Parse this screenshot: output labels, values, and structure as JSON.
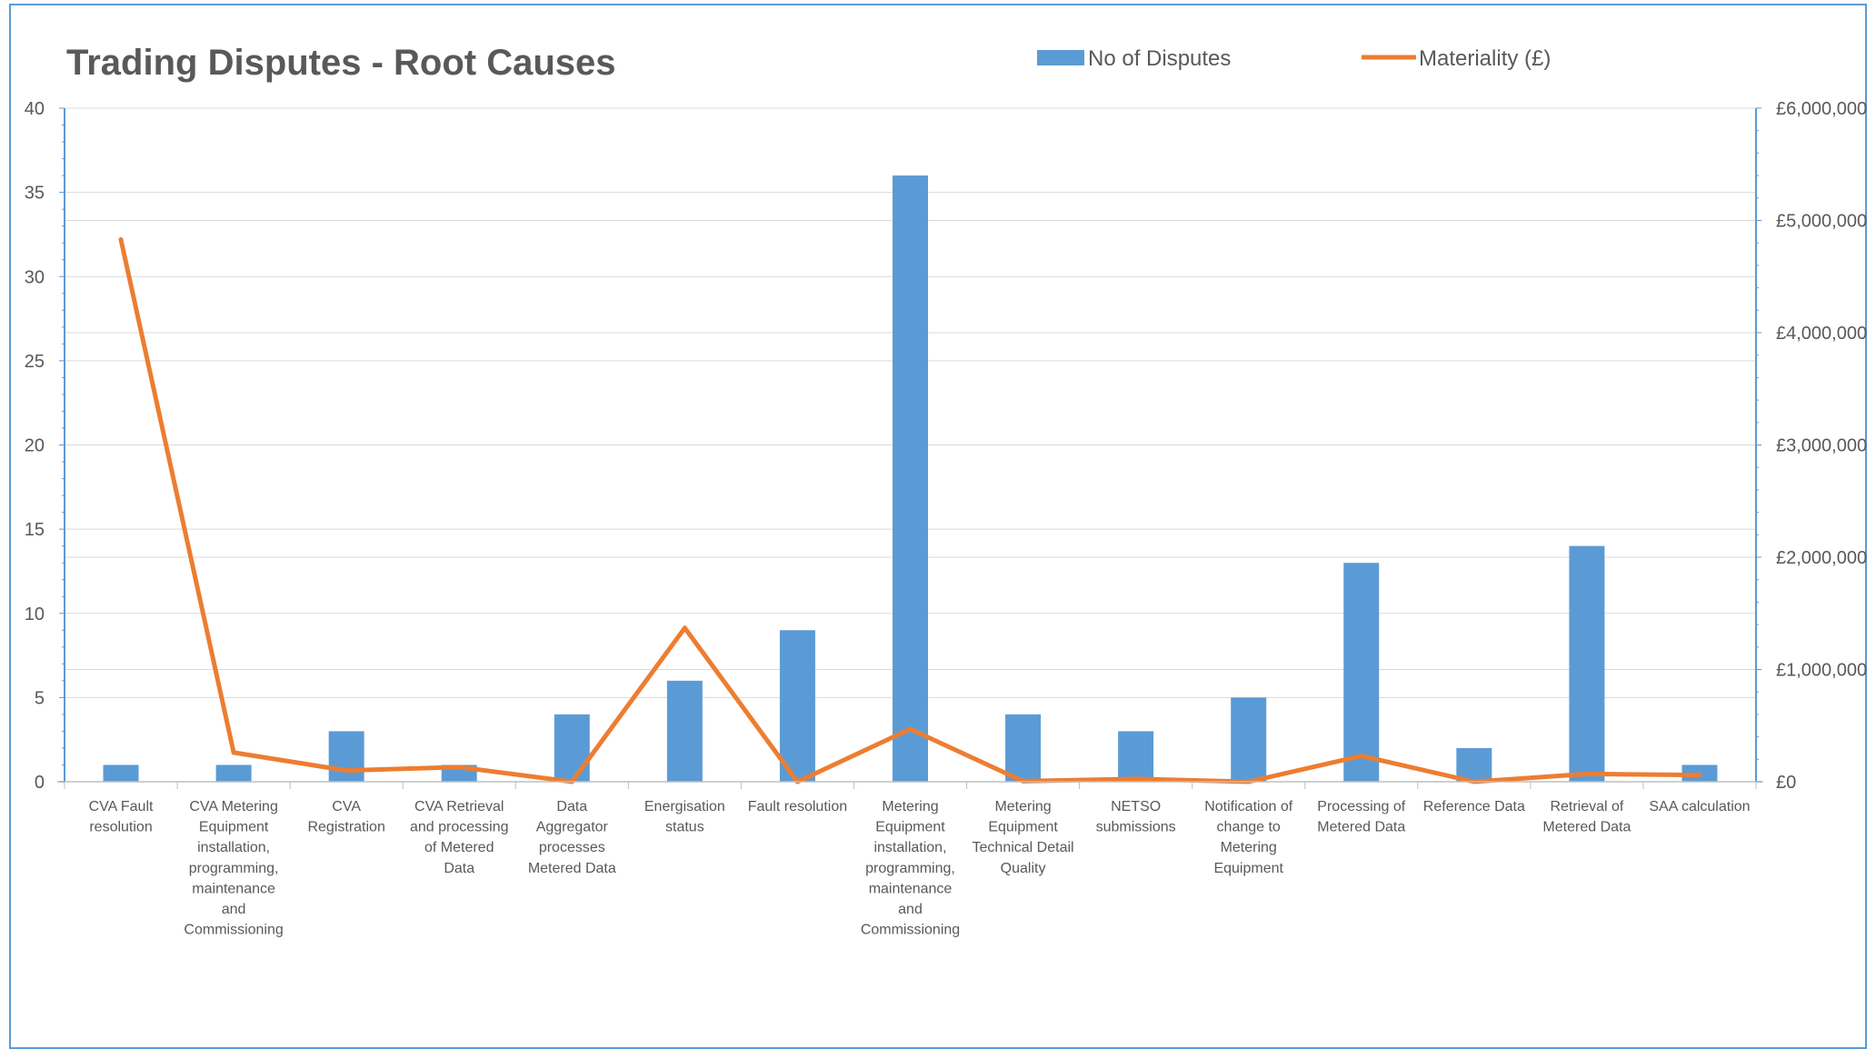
{
  "chart_data": {
    "type": "bar",
    "title": "Trading Disputes - Root Causes",
    "categories": [
      [
        "CVA Fault",
        "resolution"
      ],
      [
        "CVA Metering",
        "Equipment",
        "installation,",
        "programming,",
        "maintenance",
        "and",
        "Commissioning"
      ],
      [
        "CVA",
        "Registration"
      ],
      [
        "CVA Retrieval",
        "and processing",
        "of Metered",
        "Data"
      ],
      [
        "Data",
        "Aggregator",
        "processes",
        "Metered Data"
      ],
      [
        "Energisation",
        "status"
      ],
      [
        "Fault resolution"
      ],
      [
        "Metering",
        "Equipment",
        "installation,",
        "programming,",
        "maintenance",
        "and",
        "Commissioning"
      ],
      [
        "Metering",
        "Equipment",
        "Technical Detail",
        "Quality"
      ],
      [
        "NETSO",
        "submissions"
      ],
      [
        "Notification of",
        "change to",
        "Metering",
        "Equipment"
      ],
      [
        "Processing of",
        "Metered Data"
      ],
      [
        "Reference Data"
      ],
      [
        "Retrieval of",
        "Metered Data"
      ],
      [
        "SAA calculation"
      ]
    ],
    "series": [
      {
        "name": "No of Disputes",
        "type": "bar",
        "axis": "left",
        "color": "#5b9bd5",
        "values": [
          1,
          1,
          3,
          1,
          4,
          6,
          9,
          36,
          4,
          3,
          5,
          13,
          2,
          14,
          1
        ]
      },
      {
        "name": "Materiality (£)",
        "type": "line",
        "axis": "right",
        "color": "#ed7d31",
        "values": [
          4830000,
          260000,
          100000,
          130000,
          0,
          1370000,
          0,
          470000,
          5000,
          25000,
          0,
          230000,
          0,
          70000,
          60000
        ]
      }
    ],
    "y_left": {
      "ylim": [
        0,
        40
      ],
      "ticks": [
        "0",
        "5",
        "10",
        "15",
        "20",
        "25",
        "30",
        "35",
        "40"
      ]
    },
    "y_right": {
      "ylim": [
        0,
        6000000
      ],
      "ticks": [
        "£0",
        "£1,000,000",
        "£2,000,000",
        "£3,000,000",
        "£4,000,000",
        "£5,000,000",
        "£6,000,000"
      ]
    },
    "grid": true,
    "legend": "top-right",
    "colors": {
      "axis": "#5b9bd5",
      "grid": "#d9d9d9",
      "text": "#595959"
    }
  }
}
